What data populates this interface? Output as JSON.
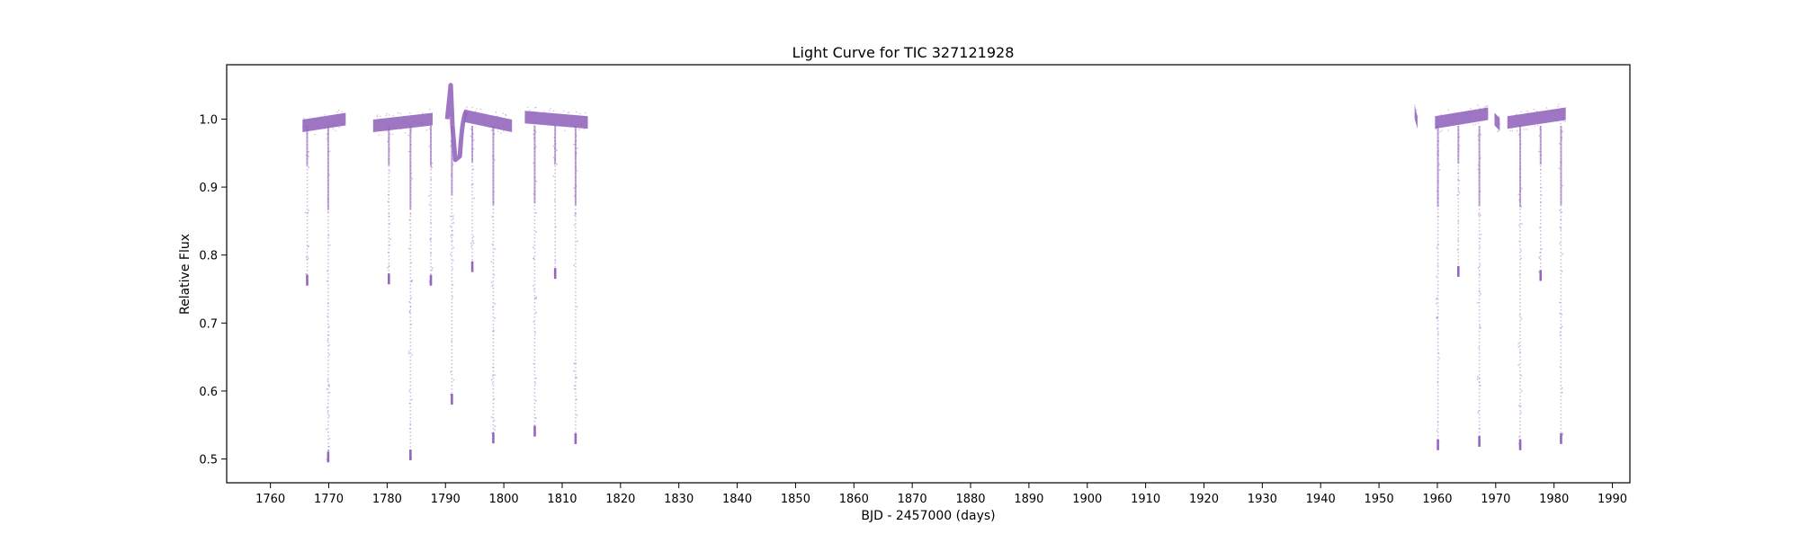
{
  "colors": {
    "series": "#9467bd",
    "axes": "#000000",
    "background": "#ffffff"
  },
  "chart_data": {
    "type": "scatter",
    "title": "Light Curve for TIC 327121928",
    "xlabel": "BJD - 2457000 (days)",
    "ylabel": "Relative Flux",
    "xlim": [
      1752.5,
      1993
    ],
    "ylim": [
      0.465,
      1.08
    ],
    "grid": false,
    "xticks": [
      1760,
      1770,
      1780,
      1790,
      1800,
      1810,
      1820,
      1830,
      1840,
      1850,
      1860,
      1870,
      1880,
      1890,
      1900,
      1910,
      1920,
      1930,
      1940,
      1950,
      1960,
      1970,
      1980,
      1990
    ],
    "yticks": [
      0.5,
      0.6,
      0.7,
      0.8,
      0.9,
      1.0
    ],
    "ytick_labels": [
      "0.5",
      "0.6",
      "0.7",
      "0.8",
      "0.9",
      "1.0"
    ],
    "baseline_segments": [
      {
        "x_start": 1765.5,
        "x_end": 1772.9,
        "flux_start": 0.99,
        "flux_end": 1.0
      },
      {
        "x_start": 1777.6,
        "x_end": 1787.8,
        "flux_start": 0.99,
        "flux_end": 1.0
      },
      {
        "x_start": 1793.2,
        "x_end": 1801.4,
        "flux_start": 1.005,
        "flux_end": 0.99
      },
      {
        "x_start": 1803.6,
        "x_end": 1814.4,
        "flux_start": 1.003,
        "flux_end": 0.995
      },
      {
        "x_start": 1956.1,
        "x_end": 1956.6,
        "flux_start": 1.01,
        "flux_end": 0.995
      },
      {
        "x_start": 1959.6,
        "x_end": 1968.7,
        "flux_start": 0.995,
        "flux_end": 1.008
      },
      {
        "x_start": 1969.8,
        "x_end": 1970.7,
        "flux_start": 1.0,
        "flux_end": 0.992
      },
      {
        "x_start": 1972.0,
        "x_end": 1982.0,
        "flux_start": 0.995,
        "flux_end": 1.008
      }
    ],
    "flare_event": {
      "x_start": 1790.3,
      "x_peak": 1790.9,
      "x_min": 1792.0,
      "x_end": 1793.5,
      "flux_peak": 1.05,
      "flux_min": 0.94
    },
    "eclipses": [
      {
        "x": 1766.3,
        "depth_flux": 0.755
      },
      {
        "x": 1769.9,
        "depth_flux": 0.495
      },
      {
        "x": 1780.3,
        "depth_flux": 0.757
      },
      {
        "x": 1784.0,
        "depth_flux": 0.498
      },
      {
        "x": 1787.5,
        "depth_flux": 0.755
      },
      {
        "x": 1791.1,
        "depth_flux": 0.58
      },
      {
        "x": 1794.6,
        "depth_flux": 0.775
      },
      {
        "x": 1798.2,
        "depth_flux": 0.523
      },
      {
        "x": 1805.3,
        "depth_flux": 0.533
      },
      {
        "x": 1808.8,
        "depth_flux": 0.765
      },
      {
        "x": 1812.3,
        "depth_flux": 0.522
      },
      {
        "x": 1960.1,
        "depth_flux": 0.513
      },
      {
        "x": 1963.6,
        "depth_flux": 0.768
      },
      {
        "x": 1967.2,
        "depth_flux": 0.518
      },
      {
        "x": 1974.2,
        "depth_flux": 0.513
      },
      {
        "x": 1977.7,
        "depth_flux": 0.762
      },
      {
        "x": 1981.2,
        "depth_flux": 0.522
      }
    ]
  }
}
